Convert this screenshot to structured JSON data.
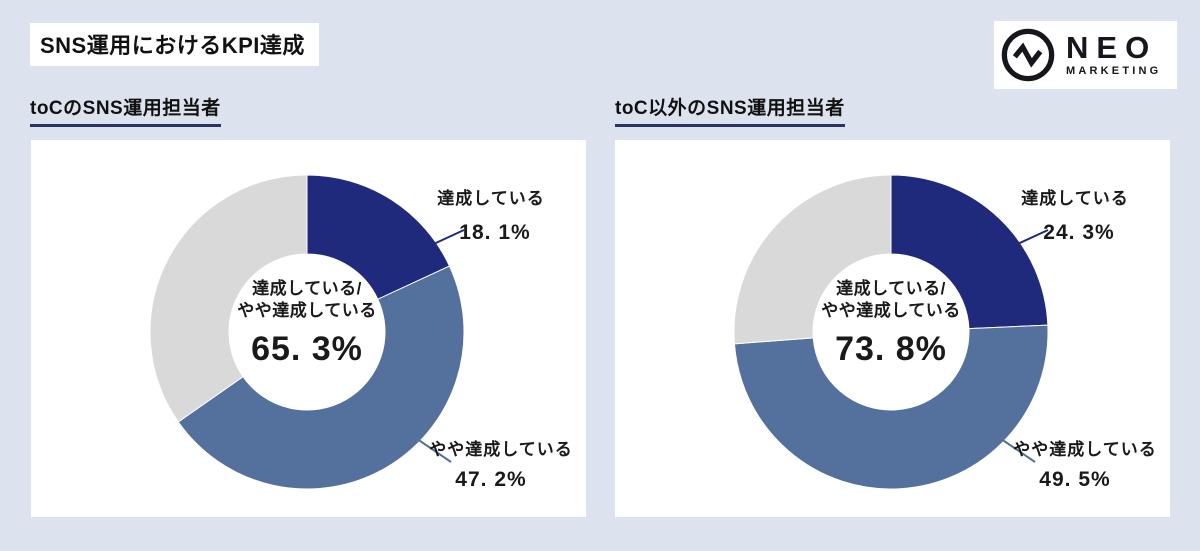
{
  "title": "SNS運用におけるKPI達成",
  "logo": {
    "brand": "NEO",
    "sub": "MARKETING",
    "icon": "pulse-zigzag-circle-icon"
  },
  "colors": {
    "background": "#dce3ee",
    "panel": "#ffffff",
    "achieved": "#1f2a7c",
    "partially_achieved": "#54719e",
    "remainder": "#d9d9d9",
    "header_underline": "#283366",
    "text": "#1a1a1a"
  },
  "chart_data": [
    {
      "type": "pie",
      "variant": "donut",
      "title": "toCのSNS運用担当者",
      "start_angle": "12-oclock",
      "direction": "clockwise",
      "segments": [
        {
          "label": "達成している",
          "value": 18.1,
          "value_label": "18. 1%",
          "color": "#1f2a7c"
        },
        {
          "label": "やや達成している",
          "value": 47.2,
          "value_label": "47. 2%",
          "color": "#54719e"
        },
        {
          "label": "",
          "value": 34.7,
          "value_label": "",
          "color": "#d9d9d9"
        }
      ],
      "center": {
        "line1": "達成している/",
        "line2": "やや達成している",
        "value": 65.3,
        "value_label": "65. 3%"
      }
    },
    {
      "type": "pie",
      "variant": "donut",
      "title": "toC以外のSNS運用担当者",
      "start_angle": "12-oclock",
      "direction": "clockwise",
      "segments": [
        {
          "label": "達成している",
          "value": 24.3,
          "value_label": "24. 3%",
          "color": "#1f2a7c"
        },
        {
          "label": "やや達成している",
          "value": 49.5,
          "value_label": "49. 5%",
          "color": "#54719e"
        },
        {
          "label": "",
          "value": 26.2,
          "value_label": "",
          "color": "#d9d9d9"
        }
      ],
      "center": {
        "line1": "達成している/",
        "line2": "やや達成している",
        "value": 73.8,
        "value_label": "73. 8%"
      }
    }
  ]
}
